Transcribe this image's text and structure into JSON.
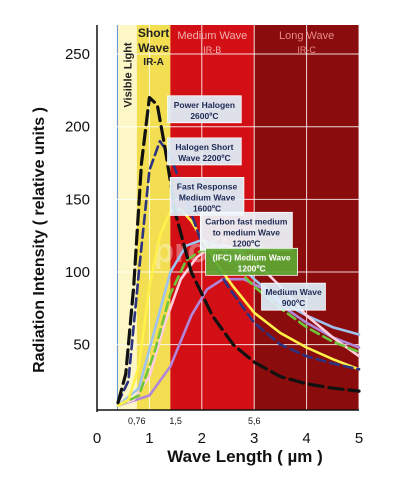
{
  "chart_data": {
    "type": "line",
    "xlabel": "Wave Length ( µm )",
    "ylabel": "Radiation Intensity ( relative units )",
    "xlim": [
      0,
      5
    ],
    "ylim": [
      5,
      270
    ],
    "x_ticks": [
      "0",
      "1",
      "2",
      "3",
      "4",
      "5"
    ],
    "y_ticks": [
      "50",
      "100",
      "150",
      "200",
      "250"
    ],
    "x_boundary_labels": [
      "0,76",
      "1,5",
      "5,6"
    ],
    "grid": true,
    "watermark": "proflex",
    "bands": [
      {
        "name": "visible",
        "label": "Visible Light",
        "from": 0.38,
        "to": 0.4,
        "color": "#5b8fd8"
      },
      {
        "name": "visible-light",
        "label": "Visible Light",
        "from": 0.4,
        "to": 0.76,
        "color": "#fdf7c8"
      },
      {
        "name": "short-wave",
        "label": "Short Wave",
        "sublabel": "IR-A",
        "from": 0.76,
        "to": 1.4,
        "color": "#f2de50"
      },
      {
        "name": "medium-wave",
        "label": "Medium Wave",
        "sublabel": "IR-B",
        "from": 1.4,
        "to": 3.0,
        "color": "#d10f15"
      },
      {
        "name": "long-wave",
        "label": "Long Wave",
        "sublabel": "IR-C",
        "from": 3.0,
        "to": 5.0,
        "color": "#8a0c0c"
      }
    ],
    "series": [
      {
        "name": "Power Halogen 2600ºC",
        "color": "#111111",
        "dash": "long",
        "x": [
          0.4,
          0.55,
          0.7,
          0.85,
          1.0,
          1.15,
          1.3,
          1.5,
          1.8,
          2.2,
          2.6,
          3.0,
          3.5,
          4.0,
          4.5,
          5.0
        ],
        "y": [
          10,
          30,
          90,
          175,
          220,
          215,
          185,
          140,
          100,
          70,
          50,
          38,
          28,
          23,
          20,
          18
        ]
      },
      {
        "name": "Halogen Short Wave 2200ºC",
        "color": "#2c3380",
        "dash": "medium",
        "x": [
          0.4,
          0.6,
          0.8,
          1.0,
          1.2,
          1.4,
          1.7,
          2.0,
          2.5,
          3.0,
          3.5,
          4.0,
          4.5,
          5.0
        ],
        "y": [
          10,
          25,
          100,
          170,
          190,
          180,
          150,
          120,
          90,
          65,
          50,
          42,
          37,
          33
        ]
      },
      {
        "name": "Fast Response Medium Wave 1600ºC",
        "color": "#fff04a",
        "dash": "solid",
        "x": [
          0.4,
          0.6,
          0.8,
          1.0,
          1.2,
          1.4,
          1.6,
          1.8,
          2.0,
          2.3,
          2.6,
          3.0,
          3.5,
          4.0,
          4.5,
          5.0
        ],
        "y": [
          8,
          12,
          35,
          90,
          125,
          142,
          143,
          135,
          123,
          105,
          90,
          72,
          58,
          48,
          40,
          33
        ]
      },
      {
        "name": "Carbon fast medium to medium Wave 1200ºC",
        "color": "#ffcfe0",
        "dash": "solid",
        "x": [
          0.4,
          0.7,
          1.0,
          1.3,
          1.6,
          1.9,
          2.2,
          2.5,
          3.0,
          3.5,
          4.0,
          4.5,
          5.0
        ],
        "y": [
          8,
          12,
          28,
          65,
          95,
          110,
          118,
          118,
          108,
          90,
          70,
          55,
          42
        ]
      },
      {
        "name": "(IFC) Medium Wave 1200ºC",
        "color": "#6fc63a",
        "dash": "medium",
        "x": [
          0.4,
          0.8,
          1.1,
          1.4,
          1.7,
          2.0,
          2.3,
          2.6,
          3.0,
          3.5,
          4.0,
          4.5,
          5.0
        ],
        "y": [
          8,
          15,
          45,
          85,
          108,
          115,
          112,
          105,
          90,
          75,
          62,
          52,
          45
        ]
      },
      {
        "name": "Medium Wave 900ºC",
        "color": "#b286d8",
        "dash": "solid",
        "x": [
          0.4,
          1.0,
          1.4,
          1.8,
          2.1,
          2.4,
          2.8,
          3.2,
          3.6,
          4.0,
          4.5,
          5.0
        ],
        "y": [
          8,
          15,
          35,
          70,
          88,
          95,
          95,
          88,
          75,
          65,
          55,
          48
        ]
      },
      {
        "name": "light-blue-solid",
        "color": "#9ec3ee",
        "dash": "solid",
        "x": [
          0.4,
          0.8,
          1.1,
          1.4,
          1.7,
          2.0,
          2.3,
          2.6,
          3.0,
          3.5,
          4.0,
          4.5,
          5.0
        ],
        "y": [
          8,
          20,
          60,
          100,
          118,
          122,
          118,
          110,
          95,
          80,
          70,
          62,
          57
        ]
      }
    ],
    "annotations": [
      {
        "name": "label-power-halogen",
        "lines": [
          "Power Halogen",
          "2600ºC"
        ],
        "x": 2.05,
        "y": 212,
        "fill": "#dff0fb",
        "text_color": "#1e2a55"
      },
      {
        "name": "label-halogen-short",
        "lines": [
          "Halogen Short",
          "Wave 2200ºC"
        ],
        "x": 2.05,
        "y": 183,
        "fill": "#dff0fb",
        "text_color": "#1e2a55"
      },
      {
        "name": "label-fast-response",
        "lines": [
          "Fast Response",
          "Medium Wave",
          "1600ºC"
        ],
        "x": 2.1,
        "y": 152,
        "fill": "#dff0fb",
        "text_color": "#1e2a55"
      },
      {
        "name": "label-carbon",
        "lines": [
          "Carbon fast medium",
          "to medium Wave",
          "1200ºC"
        ],
        "x": 2.85,
        "y": 128,
        "fill": "#eef5fb",
        "text_color": "#1e2a55"
      },
      {
        "name": "label-ifc",
        "lines": [
          "(IFC) Medium Wave",
          "1200ºC"
        ],
        "x": 2.95,
        "y": 107,
        "fill": "#5ea833",
        "text_color": "#ffffff"
      },
      {
        "name": "label-medium-wave-900",
        "lines": [
          "Medium Wave",
          "900ºC"
        ],
        "x": 3.75,
        "y": 83,
        "fill": "#dff0fb",
        "text_color": "#1e2a55"
      }
    ]
  }
}
